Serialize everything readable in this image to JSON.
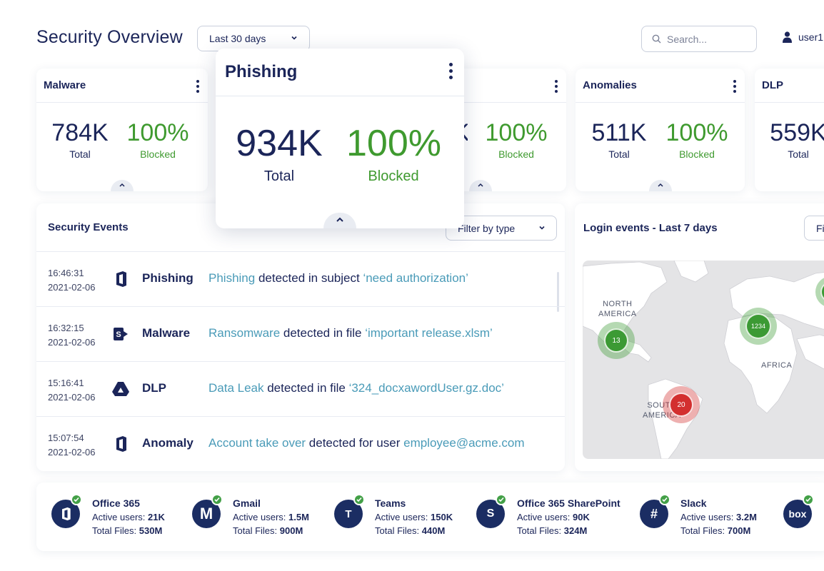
{
  "header": {
    "title": "Security Overview",
    "range_label": "Last 30 days",
    "search_placeholder": "Search...",
    "user_name": "user1"
  },
  "stat_cards": [
    {
      "title": "Malware",
      "total": "784K",
      "total_label": "Total",
      "blocked": "100%",
      "blocked_label": "Blocked"
    },
    {
      "title": "Phishing",
      "total": "934K",
      "total_label": "Total",
      "blocked": "100%",
      "blocked_label": "Blocked"
    },
    {
      "title": "",
      "total": "",
      "total_label": "",
      "blocked": "100%",
      "blocked_label": "Blocked"
    },
    {
      "title": "Anomalies",
      "total": "511K",
      "total_label": "Total",
      "blocked": "100%",
      "blocked_label": "Blocked"
    },
    {
      "title": "DLP",
      "total": "559K",
      "total_label": "Total"
    }
  ],
  "events": {
    "title": "Security Events",
    "filter_label": "Filter by type",
    "rows": [
      {
        "time": "16:46:31",
        "date": "2021-02-06",
        "icon": "office-icon",
        "type": "Phishing",
        "desc_pre": "Phishing",
        "desc_mid": " detected in subject ",
        "desc_post": "‘need authorization’"
      },
      {
        "time": "16:32:15",
        "date": "2021-02-06",
        "icon": "sharepoint-icon",
        "type": "Malware",
        "desc_pre": "Ransomware",
        "desc_mid": " detected in file ",
        "desc_post": "‘important release.xlsm’"
      },
      {
        "time": "15:16:41",
        "date": "2021-02-06",
        "icon": "drive-icon",
        "type": "DLP",
        "desc_pre": "Data Leak",
        "desc_mid": " detected in file ",
        "desc_post": "‘324_docxawordUser.gz.doc’"
      },
      {
        "time": "15:07:54",
        "date": "2021-02-06",
        "icon": "office-icon",
        "type": "Anomaly",
        "desc_pre": "Account take over",
        "desc_mid": " detected for user ",
        "desc_post": "employee@acme.com"
      }
    ]
  },
  "login": {
    "title": "Login events - Last 7 days",
    "filter_label": "Fi",
    "map_labels": {
      "north_america": "NORTH\nAMERICA",
      "south_america": "SOUTH\nAMERICA",
      "africa": "AFRICA"
    },
    "bubbles": [
      {
        "label": "13",
        "color": "#3c9a34"
      },
      {
        "label": "1234",
        "color": "#3c9a34"
      },
      {
        "label": "20",
        "color": "#d32f2f"
      }
    ]
  },
  "apps": [
    {
      "name": "Office 365",
      "users_label": "Active users:",
      "users": "21K",
      "files_label": "Total Files:",
      "files": "530M"
    },
    {
      "name": "Gmail",
      "users_label": "Active users:",
      "users": "1.5M",
      "files_label": "Total Files:",
      "files": "900M"
    },
    {
      "name": "Teams",
      "users_label": "Active users:",
      "users": "150K",
      "files_label": "Total Files:",
      "files": "440M"
    },
    {
      "name": "Office 365 SharePoint",
      "users_label": "Active users:",
      "users": "90K",
      "files_label": "Total Files:",
      "files": "324M"
    },
    {
      "name": "Slack",
      "users_label": "Active users:",
      "users": "3.2M",
      "files_label": "Total Files:",
      "files": "700M"
    },
    {
      "name": "box"
    }
  ],
  "colors": {
    "navy": "#1b2559",
    "green": "#3f9a2f",
    "link": "#4a9bb8",
    "red": "#d32f2f"
  }
}
